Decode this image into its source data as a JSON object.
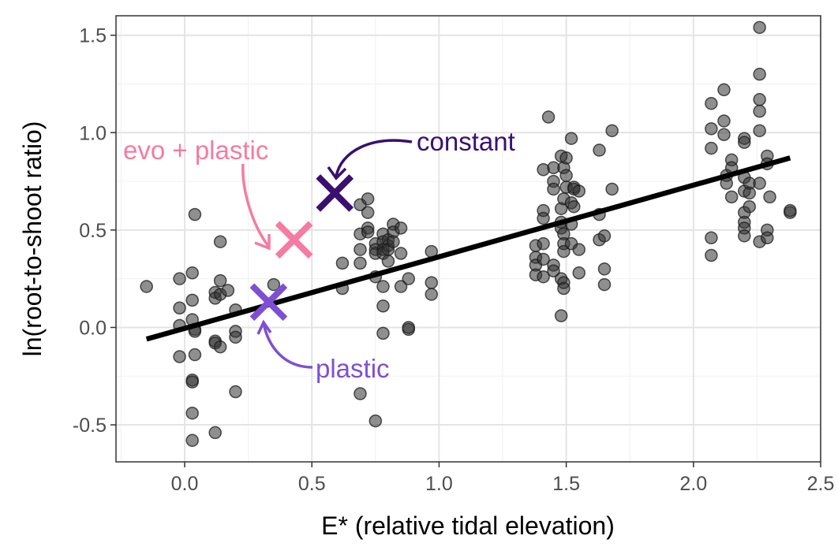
{
  "chart_data": {
    "type": "scatter",
    "xlabel": "E* (relative tidal elevation)",
    "ylabel": "ln(root-to-shoot ratio)",
    "xlim": [
      -0.27,
      2.5
    ],
    "ylim": [
      -0.69,
      1.6
    ],
    "x_ticks": [
      0.0,
      0.5,
      1.0,
      1.5,
      2.0,
      2.5
    ],
    "x_tick_labels": [
      "0.0",
      "0.5",
      "1.0",
      "1.5",
      "2.0",
      "2.5"
    ],
    "y_ticks": [
      -0.5,
      0.0,
      0.5,
      1.0,
      1.5
    ],
    "y_tick_labels": [
      "-0.5",
      "0.0",
      "0.5",
      "1.0",
      "1.5"
    ],
    "grid": true,
    "series": [
      {
        "kind": "points",
        "color": "#333333",
        "points": [
          [
            -0.15,
            0.21
          ],
          [
            -0.02,
            0.25
          ],
          [
            -0.02,
            0.1
          ],
          [
            -0.02,
            0.01
          ],
          [
            -0.02,
            -0.15
          ],
          [
            0.03,
            0.28
          ],
          [
            0.03,
            0.14
          ],
          [
            0.03,
            0.04
          ],
          [
            0.03,
            -0.27
          ],
          [
            0.03,
            -0.28
          ],
          [
            0.03,
            -0.44
          ],
          [
            0.03,
            -0.58
          ],
          [
            0.04,
            0.58
          ],
          [
            0.04,
            -0.01
          ],
          [
            0.04,
            -0.02
          ],
          [
            0.04,
            -0.14
          ],
          [
            0.12,
            0.18
          ],
          [
            0.12,
            0.15
          ],
          [
            0.12,
            -0.07
          ],
          [
            0.12,
            -0.08
          ],
          [
            0.12,
            -0.54
          ],
          [
            0.14,
            0.44
          ],
          [
            0.14,
            0.24
          ],
          [
            0.14,
            0.17
          ],
          [
            0.14,
            -0.1
          ],
          [
            0.17,
            0.19
          ],
          [
            0.2,
            0.09
          ],
          [
            0.2,
            -0.02
          ],
          [
            0.2,
            -0.05
          ],
          [
            0.2,
            -0.33
          ],
          [
            0.35,
            0.22
          ],
          [
            0.62,
            0.2
          ],
          [
            0.62,
            0.33
          ],
          [
            0.69,
            0.48
          ],
          [
            0.69,
            0.4
          ],
          [
            0.69,
            0.33
          ],
          [
            0.69,
            0.63
          ],
          [
            0.69,
            -0.34
          ],
          [
            0.72,
            0.59
          ],
          [
            0.72,
            0.51
          ],
          [
            0.72,
            0.49
          ],
          [
            0.72,
            0.66
          ],
          [
            0.75,
            0.43
          ],
          [
            0.75,
            0.4
          ],
          [
            0.75,
            0.38
          ],
          [
            0.75,
            0.26
          ],
          [
            0.75,
            -0.48
          ],
          [
            0.78,
            0.48
          ],
          [
            0.78,
            0.44
          ],
          [
            0.78,
            0.4
          ],
          [
            0.78,
            0.38
          ],
          [
            0.78,
            0.21
          ],
          [
            0.78,
            0.11
          ],
          [
            0.78,
            -0.03
          ],
          [
            0.8,
            0.45
          ],
          [
            0.8,
            0.42
          ],
          [
            0.8,
            0.4
          ],
          [
            0.8,
            0.34
          ],
          [
            0.82,
            0.53
          ],
          [
            0.82,
            0.49
          ],
          [
            0.82,
            0.44
          ],
          [
            0.85,
            0.51
          ],
          [
            0.85,
            0.38
          ],
          [
            0.85,
            0.21
          ],
          [
            0.88,
            0.25
          ],
          [
            0.88,
            -0.01
          ],
          [
            0.88,
            0.0
          ],
          [
            0.97,
            0.39
          ],
          [
            0.97,
            0.23
          ],
          [
            0.97,
            0.17
          ],
          [
            1.38,
            0.42
          ],
          [
            1.38,
            0.36
          ],
          [
            1.38,
            0.32
          ],
          [
            1.38,
            0.27
          ],
          [
            1.41,
            0.81
          ],
          [
            1.41,
            0.6
          ],
          [
            1.41,
            0.56
          ],
          [
            1.41,
            0.43
          ],
          [
            1.41,
            0.35
          ],
          [
            1.41,
            0.26
          ],
          [
            1.43,
            1.08
          ],
          [
            1.45,
            0.82
          ],
          [
            1.45,
            0.75
          ],
          [
            1.45,
            0.71
          ],
          [
            1.45,
            0.32
          ],
          [
            1.45,
            0.29
          ],
          [
            1.48,
            0.88
          ],
          [
            1.48,
            0.61
          ],
          [
            1.48,
            0.54
          ],
          [
            1.48,
            0.51
          ],
          [
            1.48,
            0.25
          ],
          [
            1.48,
            0.06
          ],
          [
            1.49,
            0.82
          ],
          [
            1.49,
            0.66
          ],
          [
            1.49,
            0.48
          ],
          [
            1.49,
            0.43
          ],
          [
            1.49,
            0.39
          ],
          [
            1.49,
            0.23
          ],
          [
            1.49,
            0.2
          ],
          [
            1.5,
            0.87
          ],
          [
            1.5,
            0.78
          ],
          [
            1.5,
            0.72
          ],
          [
            1.52,
            0.97
          ],
          [
            1.52,
            0.64
          ],
          [
            1.52,
            0.53
          ],
          [
            1.52,
            0.43
          ],
          [
            1.53,
            0.72
          ],
          [
            1.53,
            0.71
          ],
          [
            1.53,
            0.62
          ],
          [
            1.55,
            0.7
          ],
          [
            1.55,
            0.4
          ],
          [
            1.55,
            0.28
          ],
          [
            1.63,
            0.91
          ],
          [
            1.63,
            0.58
          ],
          [
            1.63,
            0.45
          ],
          [
            1.65,
            0.47
          ],
          [
            1.65,
            0.3
          ],
          [
            1.65,
            0.22
          ],
          [
            1.68,
            1.01
          ],
          [
            1.68,
            0.71
          ],
          [
            2.07,
            1.15
          ],
          [
            2.07,
            1.02
          ],
          [
            2.07,
            0.92
          ],
          [
            2.07,
            0.46
          ],
          [
            2.07,
            0.37
          ],
          [
            2.12,
            1.22
          ],
          [
            2.12,
            1.06
          ],
          [
            2.12,
            0.99
          ],
          [
            2.13,
            0.78
          ],
          [
            2.13,
            0.74
          ],
          [
            2.15,
            0.86
          ],
          [
            2.15,
            0.82
          ],
          [
            2.15,
            0.67
          ],
          [
            2.2,
            0.97
          ],
          [
            2.2,
            0.95
          ],
          [
            2.2,
            0.77
          ],
          [
            2.2,
            0.7
          ],
          [
            2.2,
            0.59
          ],
          [
            2.2,
            0.54
          ],
          [
            2.2,
            0.51
          ],
          [
            2.2,
            0.47
          ],
          [
            2.22,
            0.74
          ],
          [
            2.22,
            0.69
          ],
          [
            2.22,
            0.62
          ],
          [
            2.26,
            1.54
          ],
          [
            2.26,
            1.3
          ],
          [
            2.26,
            1.17
          ],
          [
            2.26,
            1.11
          ],
          [
            2.26,
            1.01
          ],
          [
            2.26,
            0.74
          ],
          [
            2.26,
            0.44
          ],
          [
            2.29,
            0.88
          ],
          [
            2.29,
            0.84
          ],
          [
            2.29,
            0.5
          ],
          [
            2.29,
            0.46
          ],
          [
            2.3,
            0.67
          ],
          [
            2.38,
            0.59
          ],
          [
            2.38,
            0.6
          ]
        ]
      },
      {
        "kind": "line",
        "color": "#000000",
        "from": [
          -0.15,
          -0.06
        ],
        "to": [
          2.38,
          0.87
        ]
      },
      {
        "kind": "marker",
        "name": "constant",
        "color": "#3b0f70",
        "x": 0.59,
        "y": 0.69
      },
      {
        "kind": "marker",
        "name": "evo + plastic",
        "color": "#f67ba1",
        "x": 0.43,
        "y": 0.45
      },
      {
        "kind": "marker",
        "name": "plastic",
        "color": "#7e4fd3",
        "x": 0.33,
        "y": 0.13
      }
    ]
  }
}
